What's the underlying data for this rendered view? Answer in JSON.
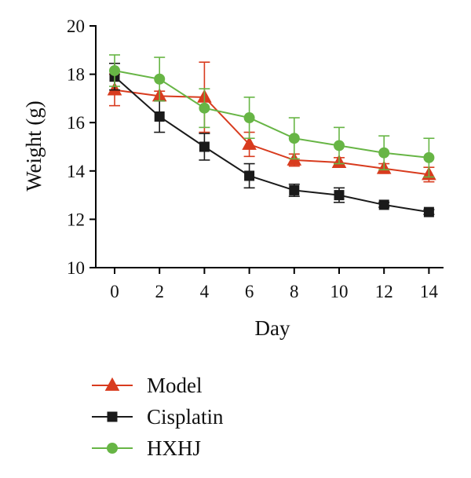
{
  "chart_data": {
    "type": "line",
    "title": "",
    "xlabel": "Day",
    "ylabel": "Weight (g)",
    "x": [
      0,
      2,
      4,
      6,
      8,
      10,
      12,
      14
    ],
    "xticks": [
      "0",
      "2",
      "4",
      "6",
      "8",
      "10",
      "12",
      "14"
    ],
    "ylim": [
      10,
      20
    ],
    "yticks": [
      "10",
      "12",
      "14",
      "16",
      "18",
      "20"
    ],
    "grid": false,
    "legend": "bottom",
    "series": [
      {
        "name": "Model",
        "color": "#d83b1e",
        "marker": "triangle",
        "values": [
          17.35,
          17.1,
          17.05,
          15.1,
          14.45,
          14.35,
          14.1,
          13.85
        ],
        "errors": [
          0.65,
          0.2,
          1.45,
          0.5,
          0.25,
          0.2,
          0.2,
          0.3
        ]
      },
      {
        "name": "Cisplatin",
        "color": "#1a1a1a",
        "marker": "square",
        "values": [
          17.9,
          16.25,
          15.0,
          13.8,
          13.2,
          13.0,
          12.6,
          12.3
        ],
        "errors": [
          0.55,
          0.65,
          0.55,
          0.5,
          0.25,
          0.3,
          0.1,
          0.1
        ]
      },
      {
        "name": "HXHJ",
        "color": "#67b545",
        "marker": "circle",
        "values": [
          18.15,
          17.8,
          16.6,
          16.2,
          15.35,
          15.05,
          14.75,
          14.55
        ],
        "errors": [
          0.65,
          0.9,
          0.8,
          0.85,
          0.85,
          0.75,
          0.7,
          0.8
        ]
      }
    ]
  }
}
